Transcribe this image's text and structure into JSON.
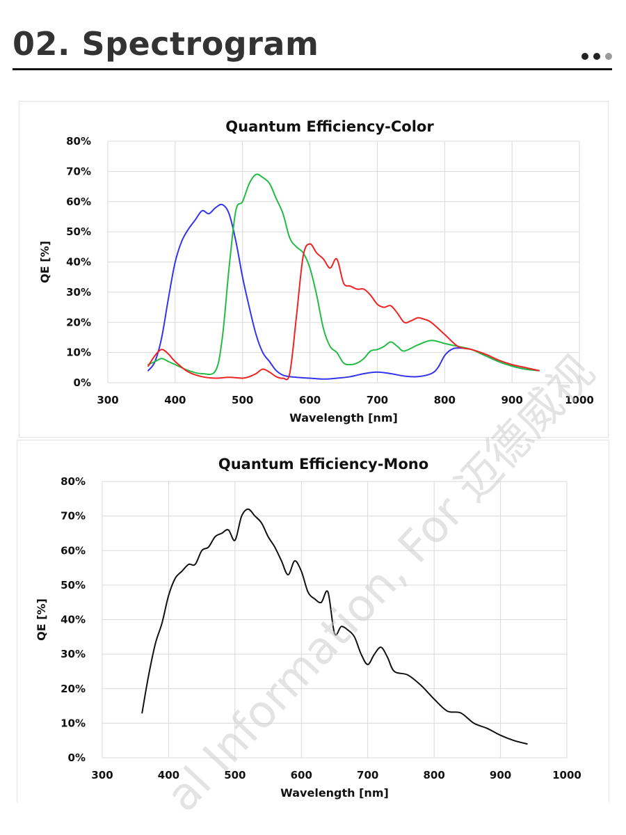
{
  "page": {
    "title": "02. Spectrogram"
  },
  "watermark": {
    "text": "al Information, For 迈德威视"
  },
  "chart_data": [
    {
      "type": "line",
      "title": "Quantum Efficiency-Color",
      "xlabel": "Wavelength [nm]",
      "ylabel": "QE [%]",
      "xlim": [
        300,
        1000
      ],
      "ylim": [
        0,
        80
      ],
      "xticks": [
        300,
        400,
        500,
        600,
        700,
        800,
        900,
        1000
      ],
      "yticks": [
        "0%",
        "10%",
        "20%",
        "30%",
        "40%",
        "50%",
        "60%",
        "70%",
        "80%"
      ],
      "grid": true,
      "legend": "none",
      "series": [
        {
          "color": "#3333ee",
          "x": [
            360,
            370,
            380,
            390,
            400,
            410,
            420,
            430,
            440,
            450,
            460,
            470,
            480,
            490,
            500,
            510,
            520,
            530,
            540,
            550,
            560,
            570,
            580,
            600,
            620,
            640,
            660,
            680,
            700,
            720,
            740,
            760,
            780,
            790,
            800,
            810,
            820,
            840,
            860,
            880,
            900,
            920,
            940
          ],
          "y": [
            4,
            7,
            15,
            28,
            40,
            47,
            51,
            54,
            57,
            56,
            58,
            59,
            56,
            47,
            35,
            25,
            16,
            10,
            7,
            4,
            2.5,
            2,
            1.8,
            1.5,
            1.2,
            1.5,
            2,
            3,
            3.5,
            3,
            2.2,
            2,
            3,
            5,
            9,
            11,
            11.5,
            11,
            9,
            7,
            5.5,
            4.5,
            4
          ]
        },
        {
          "color": "#22bb44",
          "x": [
            360,
            370,
            380,
            390,
            400,
            420,
            440,
            460,
            470,
            480,
            490,
            500,
            510,
            520,
            530,
            540,
            550,
            560,
            570,
            580,
            590,
            600,
            610,
            620,
            630,
            640,
            650,
            660,
            670,
            680,
            690,
            700,
            710,
            720,
            730,
            740,
            760,
            780,
            800,
            820,
            840,
            860,
            880,
            900,
            920,
            940
          ],
          "y": [
            6,
            7,
            8,
            7,
            6,
            4,
            3,
            4,
            15,
            38,
            57,
            60,
            66,
            69,
            68,
            66,
            61,
            56,
            48,
            45,
            43,
            38,
            29,
            18,
            12,
            10,
            6.5,
            6,
            6.5,
            8,
            10.5,
            11,
            12,
            13.5,
            12,
            10.5,
            12.5,
            14,
            13,
            12,
            11,
            9,
            7,
            5.5,
            4.5,
            4
          ]
        },
        {
          "color": "#ee2222",
          "x": [
            360,
            370,
            380,
            390,
            400,
            420,
            440,
            460,
            480,
            500,
            510,
            520,
            530,
            540,
            550,
            560,
            570,
            580,
            590,
            600,
            610,
            620,
            630,
            640,
            650,
            660,
            670,
            680,
            690,
            700,
            710,
            720,
            730,
            740,
            750,
            760,
            770,
            780,
            800,
            820,
            840,
            860,
            880,
            900,
            920,
            940
          ],
          "y": [
            5.5,
            9,
            11,
            9.5,
            7,
            3.5,
            2,
            1.5,
            1.8,
            1.5,
            2,
            3,
            4.5,
            3.5,
            2,
            1.5,
            3,
            22,
            42,
            46,
            43,
            41,
            38,
            41,
            33,
            32,
            31,
            31,
            29,
            26,
            25,
            25.5,
            23,
            20,
            20.5,
            21.5,
            21,
            20,
            16,
            12,
            11,
            9.5,
            7.5,
            6,
            5,
            4
          ]
        }
      ]
    },
    {
      "type": "line",
      "title": "Quantum Efficiency-Mono",
      "xlabel": "Wavelength [nm]",
      "ylabel": "QE [%]",
      "xlim": [
        300,
        1000
      ],
      "ylim": [
        0,
        80
      ],
      "xticks": [
        300,
        400,
        500,
        600,
        700,
        800,
        900,
        1000
      ],
      "yticks": [
        "0%",
        "10%",
        "20%",
        "30%",
        "40%",
        "50%",
        "60%",
        "70%",
        "80%"
      ],
      "grid": true,
      "legend": "none",
      "series": [
        {
          "color": "#111111",
          "x": [
            360,
            370,
            380,
            390,
            400,
            410,
            420,
            430,
            440,
            450,
            460,
            470,
            480,
            490,
            500,
            510,
            520,
            530,
            540,
            550,
            560,
            570,
            580,
            590,
            600,
            610,
            620,
            630,
            640,
            650,
            660,
            670,
            680,
            690,
            700,
            710,
            720,
            730,
            740,
            760,
            780,
            800,
            820,
            840,
            860,
            880,
            900,
            920,
            940
          ],
          "y": [
            13,
            24,
            33,
            39,
            47,
            52,
            54,
            56,
            56,
            60,
            61,
            64,
            65,
            66,
            63,
            70,
            72,
            70,
            68,
            64,
            61,
            57,
            53,
            57,
            54,
            48,
            46,
            45,
            48,
            36,
            38,
            37,
            35,
            30,
            27,
            30,
            32,
            29,
            25,
            24,
            21,
            17,
            13.5,
            13,
            10,
            8.5,
            6.5,
            5,
            4
          ]
        }
      ]
    }
  ]
}
